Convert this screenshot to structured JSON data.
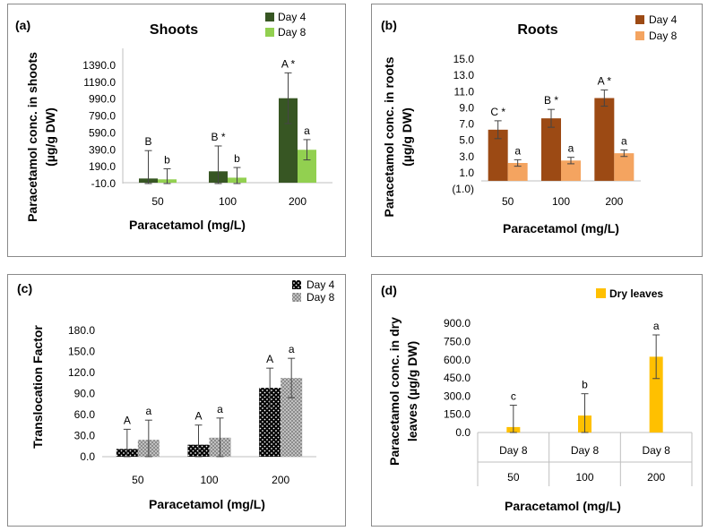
{
  "chart_data": [
    {
      "id": "a",
      "type": "bar",
      "panel_label": "(a)",
      "title": "Shoots",
      "xlabel": "Paracetamol (mg/L)",
      "ylabel_lines": [
        "Paracetamol conc. in shoots",
        "(µg/g DW)"
      ],
      "categories": [
        "50",
        "100",
        "200"
      ],
      "yticks": [
        "-10.0",
        "190.0",
        "390.0",
        "590.0",
        "790.0",
        "990.0",
        "1190.0",
        "1390.0"
      ],
      "ylim": [
        -10,
        1590
      ],
      "series": [
        {
          "name": "Day 4",
          "color": "#375623",
          "values": [
            50,
            135,
            1000
          ],
          "errors": [
            330,
            300,
            300
          ],
          "labels": [
            "B",
            "B *",
            "A *"
          ]
        },
        {
          "name": "Day 8",
          "color": "#92D050",
          "values": [
            40,
            60,
            390
          ],
          "errors": [
            125,
            120,
            120
          ],
          "labels": [
            "b",
            "b",
            "a"
          ]
        }
      ]
    },
    {
      "id": "b",
      "type": "bar",
      "panel_label": "(b)",
      "title": "Roots",
      "xlabel": "Paracetamol (mg/L)",
      "ylabel_lines": [
        "Paracetamol conc. in roots",
        "(µg/g DW)"
      ],
      "categories": [
        "50",
        "100",
        "200"
      ],
      "yticks": [
        "(1.0)",
        "1.0",
        "3.0",
        "5.0",
        "7.0",
        "9.0",
        "11.0",
        "13.0",
        "15.0"
      ],
      "ylim": [
        -1,
        15
      ],
      "series": [
        {
          "name": "Day 4",
          "color": "#9C4A14",
          "values": [
            6.3,
            7.7,
            10.2
          ],
          "errors": [
            1.1,
            1.1,
            1.0
          ],
          "labels": [
            "C *",
            "B *",
            "A *"
          ]
        },
        {
          "name": "Day 8",
          "color": "#F4A460",
          "values": [
            2.2,
            2.5,
            3.4
          ],
          "errors": [
            0.4,
            0.4,
            0.4
          ],
          "labels": [
            "a",
            "a",
            "a"
          ]
        }
      ]
    },
    {
      "id": "c",
      "type": "bar",
      "panel_label": "(c)",
      "title": "",
      "xlabel": "Paracetamol (mg/L)",
      "ylabel_lines": [
        "Translocation Factor"
      ],
      "categories": [
        "50",
        "100",
        "200"
      ],
      "yticks": [
        "0.0",
        "30.0",
        "60.0",
        "90.0",
        "120.0",
        "150.0",
        "180.0"
      ],
      "ylim": [
        0,
        195
      ],
      "series": [
        {
          "name": "Day 4",
          "color": "#000000",
          "pattern": "dots-dark",
          "values": [
            11,
            17,
            98
          ],
          "errors": [
            28,
            28,
            28
          ],
          "labels": [
            "A",
            "A",
            "A"
          ]
        },
        {
          "name": "Day 8",
          "color": "#808080",
          "pattern": "dots-grey",
          "values": [
            24,
            27,
            112
          ],
          "errors": [
            28,
            28,
            28
          ],
          "labels": [
            "a",
            "a",
            "a"
          ]
        }
      ]
    },
    {
      "id": "d",
      "type": "bar",
      "panel_label": "(d)",
      "title": "",
      "xlabel": "Paracetamol (mg/L)",
      "ylabel_lines": [
        "Paracetamol conc. in dry",
        "leaves (µg/g DW)"
      ],
      "categories": [
        "50",
        "100",
        "200"
      ],
      "sub_categories": [
        "Day 8",
        "Day 8",
        "Day 8"
      ],
      "yticks": [
        "0.0",
        "150.0",
        "300.0",
        "450.0",
        "600.0",
        "750.0",
        "900.0"
      ],
      "ylim": [
        0,
        975
      ],
      "series": [
        {
          "name": "Dry leaves",
          "color": "#FFC000",
          "values": [
            45,
            140,
            625
          ],
          "errors": [
            180,
            180,
            180
          ],
          "labels": [
            "c",
            "b",
            "a"
          ]
        }
      ]
    }
  ]
}
